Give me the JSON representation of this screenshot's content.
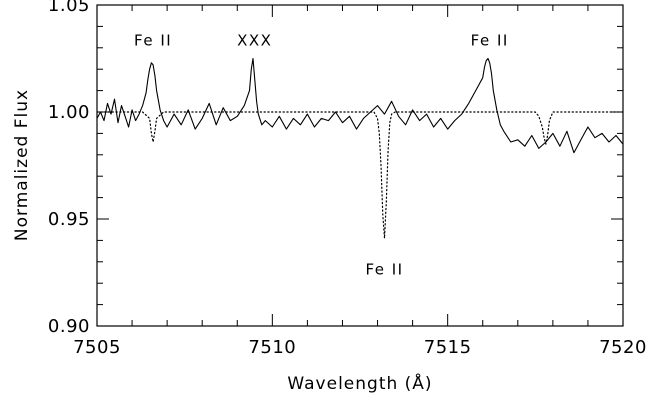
{
  "chart_data": {
    "type": "line",
    "xlabel": "Wavelength (Å)",
    "ylabel": "Normalized Flux",
    "xlim": [
      7505,
      7520
    ],
    "ylim": [
      0.9,
      1.05
    ],
    "x_ticks": [
      7505,
      7510,
      7515,
      7520
    ],
    "x_tick_labels": [
      "7505",
      "7510",
      "7515",
      "7520"
    ],
    "y_ticks": [
      0.9,
      0.95,
      1.0,
      1.05
    ],
    "y_tick_labels": [
      "0.90",
      "0.95",
      "1.00",
      "1.05"
    ],
    "grid": false,
    "annotations": [
      {
        "text": "Fe II",
        "x": 7506.6,
        "y": 1.031
      },
      {
        "text": "XXX",
        "x": 7509.5,
        "y": 1.031
      },
      {
        "text": "Fe II",
        "x": 7516.2,
        "y": 1.031
      },
      {
        "text": "Fe II",
        "x": 7513.2,
        "y": 0.924
      }
    ],
    "series": [
      {
        "style": "solid",
        "x": [
          7505.0,
          7505.1,
          7505.2,
          7505.3,
          7505.4,
          7505.5,
          7505.6,
          7505.7,
          7505.8,
          7505.9,
          7506.0,
          7506.1,
          7506.2,
          7506.3,
          7506.4,
          7506.45,
          7506.5,
          7506.55,
          7506.6,
          7506.65,
          7506.7,
          7506.8,
          7506.9,
          7507.0,
          7507.2,
          7507.4,
          7507.6,
          7507.8,
          7508.0,
          7508.2,
          7508.4,
          7508.6,
          7508.8,
          7509.0,
          7509.2,
          7509.35,
          7509.4,
          7509.45,
          7509.5,
          7509.55,
          7509.6,
          7509.7,
          7509.8,
          7510.0,
          7510.2,
          7510.4,
          7510.6,
          7510.8,
          7511.0,
          7511.2,
          7511.4,
          7511.6,
          7511.8,
          7512.0,
          7512.2,
          7512.4,
          7512.6,
          7512.8,
          7513.0,
          7513.2,
          7513.4,
          7513.6,
          7513.8,
          7514.0,
          7514.2,
          7514.4,
          7514.6,
          7514.8,
          7515.0,
          7515.2,
          7515.4,
          7515.6,
          7515.8,
          7516.0,
          7516.05,
          7516.1,
          7516.15,
          7516.2,
          7516.25,
          7516.3,
          7516.4,
          7516.5,
          7516.6,
          7516.8,
          7517.0,
          7517.2,
          7517.4,
          7517.6,
          7517.8,
          7518.0,
          7518.2,
          7518.4,
          7518.6,
          7518.8,
          7519.0,
          7519.2,
          7519.4,
          7519.6,
          7519.8,
          7520.0
        ],
        "y": [
          0.997,
          1.0,
          0.996,
          1.004,
          0.999,
          1.006,
          0.995,
          1.003,
          0.998,
          0.993,
          1.001,
          0.996,
          0.999,
          1.003,
          1.009,
          1.015,
          1.02,
          1.023,
          1.022,
          1.017,
          1.01,
          1.001,
          0.996,
          0.993,
          0.999,
          0.994,
          1.001,
          0.992,
          0.997,
          1.004,
          0.994,
          1.002,
          0.996,
          0.998,
          1.003,
          1.01,
          1.02,
          1.025,
          1.015,
          1.005,
          0.999,
          0.994,
          0.996,
          0.993,
          0.998,
          0.992,
          0.997,
          0.994,
          0.999,
          0.993,
          0.997,
          0.996,
          1.0,
          0.995,
          0.998,
          0.992,
          0.997,
          1.0,
          1.003,
          0.999,
          1.005,
          0.998,
          0.994,
          1.001,
          0.996,
          0.999,
          0.993,
          0.997,
          0.992,
          0.996,
          0.999,
          1.004,
          1.01,
          1.016,
          1.021,
          1.024,
          1.025,
          1.023,
          1.018,
          1.01,
          1.001,
          0.994,
          0.991,
          0.986,
          0.987,
          0.984,
          0.989,
          0.983,
          0.986,
          0.99,
          0.984,
          0.991,
          0.981,
          0.987,
          0.993,
          0.988,
          0.99,
          0.986,
          0.989,
          0.985
        ]
      },
      {
        "style": "dotted",
        "x": [
          7505.0,
          7506.3,
          7506.5,
          7506.55,
          7506.6,
          7506.65,
          7506.7,
          7506.9,
          7512.9,
          7513.0,
          7513.05,
          7513.1,
          7513.15,
          7513.2,
          7513.25,
          7513.3,
          7513.35,
          7513.4,
          7513.5,
          7514.0,
          7517.5,
          7517.6,
          7517.7,
          7517.75,
          7517.8,
          7517.85,
          7517.9,
          7518.0,
          7520.0
        ],
        "y": [
          1.0,
          1.0,
          0.997,
          0.99,
          0.986,
          0.991,
          0.997,
          1.0,
          1.0,
          0.997,
          0.99,
          0.975,
          0.952,
          0.941,
          0.958,
          0.982,
          0.995,
          0.999,
          1.0,
          1.0,
          1.0,
          0.998,
          0.993,
          0.988,
          0.985,
          0.989,
          0.996,
          1.0,
          1.0
        ]
      }
    ]
  }
}
